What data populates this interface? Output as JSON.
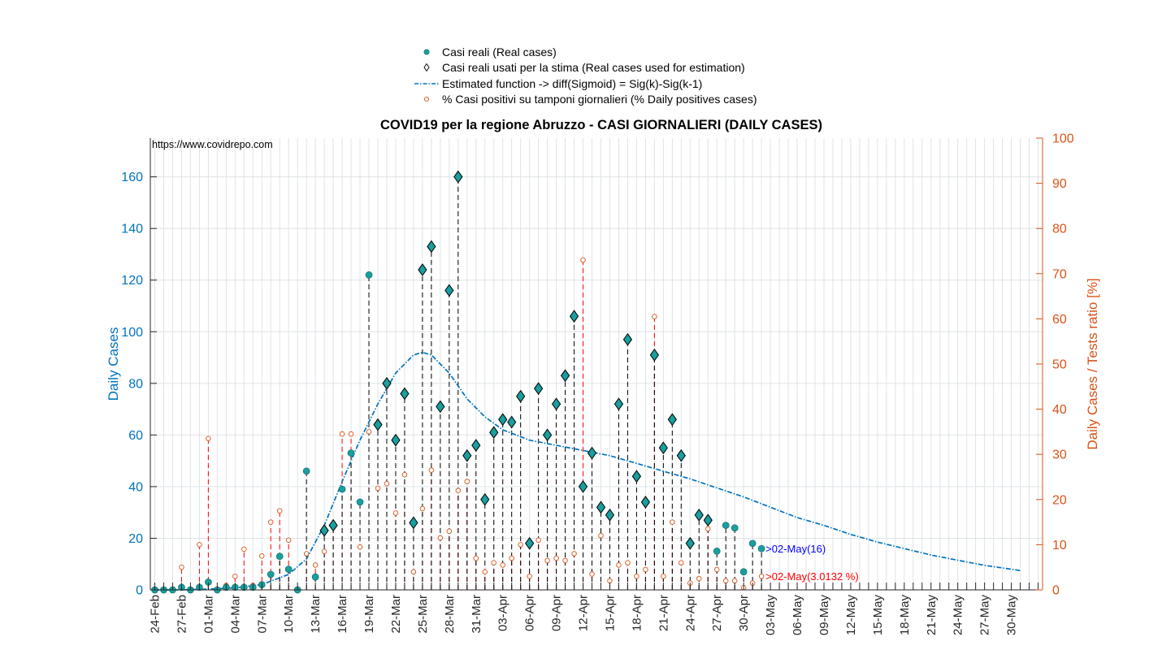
{
  "chart_data": {
    "type": "line",
    "title": "COVID19 per la regione Abruzzo - CASI GIORNALIERI (DAILY CASES)",
    "watermark": "https://www.covidrepo.com",
    "ylabel_left": "Daily Cases",
    "ylabel_right": "Daily Cases / Tests ratio [%]",
    "ylim_left": [
      0,
      175
    ],
    "ylim_right": [
      0,
      100
    ],
    "yticks_left": [
      "0",
      "20",
      "40",
      "60",
      "80",
      "100",
      "120",
      "140",
      "160"
    ],
    "yticks_right": [
      "0",
      "10",
      "20",
      "30",
      "40",
      "50",
      "60",
      "70",
      "80",
      "90",
      "100"
    ],
    "x_start_date": "24-Feb",
    "x_days": 100,
    "xtick_labels": [
      "24-Feb",
      "27-Feb",
      "01-Mar",
      "04-Mar",
      "07-Mar",
      "10-Mar",
      "13-Mar",
      "16-Mar",
      "19-Mar",
      "22-Mar",
      "25-Mar",
      "28-Mar",
      "31-Mar",
      "03-Apr",
      "06-Apr",
      "09-Apr",
      "12-Apr",
      "15-Apr",
      "18-Apr",
      "21-Apr",
      "24-Apr",
      "27-Apr",
      "30-Apr",
      "03-May",
      "06-May",
      "09-May",
      "12-May",
      "15-May",
      "18-May",
      "21-May",
      "24-May",
      "27-May",
      "30-May"
    ],
    "grid": true,
    "legend_position": "top-center",
    "legend": [
      "Casi reali (Real cases)",
      "Casi reali usati per la stima (Real cases used for estimation)",
      "Estimated function -> diff(Sigmoid) = Sig(k)-Sig(k-1)",
      "% Casi positivi su tamponi giornalieri (% Daily positives cases)"
    ],
    "series": [
      {
        "name": "Casi reali (Real cases)",
        "x": [
          "24-Feb",
          "25-Feb",
          "26-Feb",
          "27-Feb",
          "28-Feb",
          "29-Feb",
          "01-Mar",
          "02-Mar",
          "03-Mar",
          "04-Mar",
          "05-Mar",
          "06-Mar",
          "07-Mar",
          "08-Mar",
          "09-Mar",
          "10-Mar",
          "11-Mar",
          "12-Mar",
          "13-Mar",
          "14-Mar",
          "15-Mar",
          "16-Mar",
          "17-Mar",
          "18-Mar",
          "19-Mar",
          "20-Mar",
          "21-Mar",
          "22-Mar",
          "23-Mar",
          "24-Mar",
          "25-Mar",
          "26-Mar",
          "27-Mar",
          "28-Mar",
          "29-Mar",
          "30-Mar",
          "31-Mar",
          "01-Apr",
          "02-Apr",
          "03-Apr",
          "04-Apr",
          "05-Apr",
          "06-Apr",
          "07-Apr",
          "08-Apr",
          "09-Apr",
          "10-Apr",
          "11-Apr",
          "12-Apr",
          "13-Apr",
          "14-Apr",
          "15-Apr",
          "16-Apr",
          "17-Apr",
          "18-Apr",
          "19-Apr",
          "20-Apr",
          "21-Apr",
          "22-Apr",
          "23-Apr",
          "24-Apr",
          "25-Apr",
          "26-Apr",
          "27-Apr",
          "28-Apr",
          "29-Apr",
          "30-Apr",
          "01-May",
          "02-May"
        ],
        "values": [
          0,
          0,
          0,
          1,
          0,
          1,
          3,
          0,
          1,
          1,
          1,
          1,
          2,
          6,
          13,
          8,
          0,
          46,
          5,
          23,
          25,
          39,
          53,
          34,
          122,
          64,
          80,
          58,
          76,
          26,
          124,
          133,
          71,
          116,
          160,
          52,
          56,
          35,
          61,
          66,
          65,
          75,
          18,
          78,
          60,
          72,
          83,
          106,
          40,
          53,
          32,
          29,
          72,
          97,
          44,
          34,
          91,
          55,
          66,
          52,
          18,
          29,
          27,
          15,
          25,
          24,
          7,
          18,
          16
        ]
      },
      {
        "name": "Casi reali usati per la stima (Real cases used for estimation)",
        "x": [
          "14-Mar",
          "15-Mar",
          "20-Mar",
          "21-Mar",
          "22-Mar",
          "23-Mar",
          "24-Mar",
          "25-Mar",
          "26-Mar",
          "27-Mar",
          "28-Mar",
          "29-Mar",
          "30-Mar",
          "31-Mar",
          "01-Apr",
          "02-Apr",
          "03-Apr",
          "04-Apr",
          "05-Apr",
          "06-Apr",
          "07-Apr",
          "08-Apr",
          "09-Apr",
          "10-Apr",
          "11-Apr",
          "12-Apr",
          "13-Apr",
          "14-Apr",
          "15-Apr",
          "16-Apr",
          "17-Apr",
          "18-Apr",
          "19-Apr",
          "20-Apr",
          "21-Apr",
          "22-Apr",
          "23-Apr",
          "24-Apr",
          "25-Apr",
          "26-Apr"
        ],
        "values": [
          23,
          25,
          64,
          80,
          58,
          76,
          26,
          124,
          133,
          71,
          116,
          160,
          52,
          56,
          35,
          61,
          66,
          65,
          75,
          18,
          78,
          60,
          72,
          83,
          106,
          40,
          53,
          32,
          29,
          72,
          97,
          44,
          34,
          91,
          55,
          66,
          52,
          18,
          29,
          27
        ]
      },
      {
        "name": "Estimated function -> diff(Sigmoid) = Sig(k)-Sig(k-1)",
        "x": [
          "24-Feb",
          "27-Feb",
          "01-Mar",
          "04-Mar",
          "07-Mar",
          "10-Mar",
          "12-Mar",
          "14-Mar",
          "16-Mar",
          "18-Mar",
          "20-Mar",
          "22-Mar",
          "24-Mar",
          "25-Mar",
          "26-Mar",
          "28-Mar",
          "30-Mar",
          "01-Apr",
          "03-Apr",
          "06-Apr",
          "09-Apr",
          "12-Apr",
          "15-Apr",
          "18-Apr",
          "21-Apr",
          "24-Apr",
          "27-Apr",
          "30-Apr",
          "03-May",
          "06-May",
          "09-May",
          "12-May",
          "15-May",
          "18-May",
          "21-May",
          "24-May",
          "27-May",
          "31-May"
        ],
        "values": [
          0,
          0,
          0.3,
          0.8,
          2,
          6,
          12,
          25,
          42,
          58,
          72,
          84,
          91,
          92,
          91,
          84,
          74,
          67,
          62,
          58,
          56,
          54,
          52,
          49,
          46,
          43,
          39.5,
          36,
          32,
          28,
          25,
          21.5,
          18.5,
          16,
          13.5,
          11.5,
          9.5,
          7.5
        ]
      },
      {
        "name": "% Casi positivi su tamponi giornalieri (% Daily positives cases)",
        "axis": "right",
        "x": [
          "24-Feb",
          "25-Feb",
          "26-Feb",
          "27-Feb",
          "28-Feb",
          "29-Feb",
          "01-Mar",
          "02-Mar",
          "03-Mar",
          "04-Mar",
          "05-Mar",
          "06-Mar",
          "07-Mar",
          "08-Mar",
          "09-Mar",
          "10-Mar",
          "11-Mar",
          "12-Mar",
          "13-Mar",
          "14-Mar",
          "15-Mar",
          "16-Mar",
          "17-Mar",
          "18-Mar",
          "19-Mar",
          "20-Mar",
          "21-Mar",
          "22-Mar",
          "23-Mar",
          "24-Mar",
          "25-Mar",
          "26-Mar",
          "27-Mar",
          "28-Mar",
          "29-Mar",
          "30-Mar",
          "31-Mar",
          "01-Apr",
          "02-Apr",
          "03-Apr",
          "04-Apr",
          "05-Apr",
          "06-Apr",
          "07-Apr",
          "08-Apr",
          "09-Apr",
          "10-Apr",
          "11-Apr",
          "12-Apr",
          "13-Apr",
          "14-Apr",
          "15-Apr",
          "16-Apr",
          "17-Apr",
          "18-Apr",
          "19-Apr",
          "20-Apr",
          "21-Apr",
          "22-Apr",
          "23-Apr",
          "24-Apr",
          "25-Apr",
          "26-Apr",
          "27-Apr",
          "28-Apr",
          "29-Apr",
          "30-Apr",
          "01-May",
          "02-May"
        ],
        "values": [
          0,
          0,
          0,
          5,
          0,
          10,
          33.5,
          0,
          1,
          3,
          9,
          1,
          7.5,
          15,
          17.5,
          11,
          0,
          8,
          5.5,
          8.5,
          14,
          34.5,
          34.5,
          9.5,
          35,
          22.5,
          23.5,
          17,
          25.5,
          4,
          18,
          26.5,
          11.5,
          13,
          22,
          24,
          7,
          4,
          6,
          5.5,
          7,
          10,
          3,
          11,
          6.5,
          7,
          6.5,
          8,
          73,
          3.5,
          12,
          2,
          5.5,
          6,
          3,
          4.5,
          60.5,
          3,
          15,
          6,
          1.5,
          2.5,
          13.5,
          4.5,
          2,
          2,
          0.5,
          1.5,
          3
        ]
      }
    ],
    "annotations": [
      {
        "text": ">02-May(16)",
        "color": "#0000ff",
        "x": "02-May",
        "y": 16,
        "axis": "left"
      },
      {
        "text": ">02-May(3.0132 %)",
        "color": "#ff0000",
        "x": "02-May",
        "y": 3.0132,
        "axis": "right"
      }
    ],
    "colors": {
      "left_axis": "#0072bd",
      "right_axis": "#d95319",
      "real_cases": "#1a9e9e",
      "estimation_marker": "#1a9e9e",
      "fit_line": "#0072bd",
      "stems_cases": "#000000",
      "stems_ratio": "#ff0000",
      "ratio_marker": "#d95319",
      "grid": "#dfe3e6"
    }
  }
}
